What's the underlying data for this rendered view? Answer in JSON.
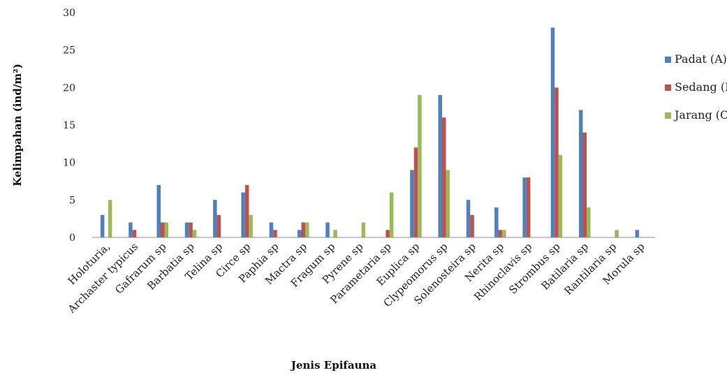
{
  "chart_data": {
    "type": "bar",
    "title": "",
    "xlabel": "Jenis Epifauna",
    "ylabel": "Kelimpahan (ind/m²)",
    "ylim": [
      0,
      30
    ],
    "yticks": [
      "0",
      "5",
      "10",
      "15",
      "20",
      "25",
      "30"
    ],
    "grid": false,
    "legend_position": "right",
    "categories": [
      "Holoturia,",
      "Archaster typicus",
      "Gafrarum sp",
      "Barbatia sp",
      "Telina sp",
      "Circe sp",
      "Paphia sp",
      "Mactra sp",
      "Fragum sp",
      "Pyrene sp",
      "Parametaria sp",
      "Euplica sp",
      "Clypeomorus sp",
      "Solenosteira sp",
      "Nerita sp",
      "Rhinoclavis sp",
      "Strombus sp",
      "Batilaria sp",
      "Rantilaria sp",
      "Morula sp"
    ],
    "series": [
      {
        "name": "Padat (A)",
        "color": "#4f81bd",
        "values": [
          3,
          2,
          7,
          2,
          5,
          6,
          2,
          1,
          2,
          0,
          0,
          9,
          19,
          5,
          4,
          8,
          28,
          17,
          0,
          1
        ]
      },
      {
        "name": "Sedang (B)",
        "color": "#c0504d",
        "values": [
          0,
          1,
          2,
          2,
          3,
          7,
          1,
          2,
          0,
          0,
          1,
          12,
          16,
          3,
          1,
          8,
          20,
          14,
          0,
          0
        ]
      },
      {
        "name": "Jarang (C)",
        "color": "#9bbb59",
        "values": [
          5,
          0,
          2,
          1,
          0,
          3,
          0,
          2,
          1,
          2,
          6,
          19,
          9,
          0,
          1,
          0,
          11,
          4,
          1,
          0
        ]
      }
    ]
  }
}
